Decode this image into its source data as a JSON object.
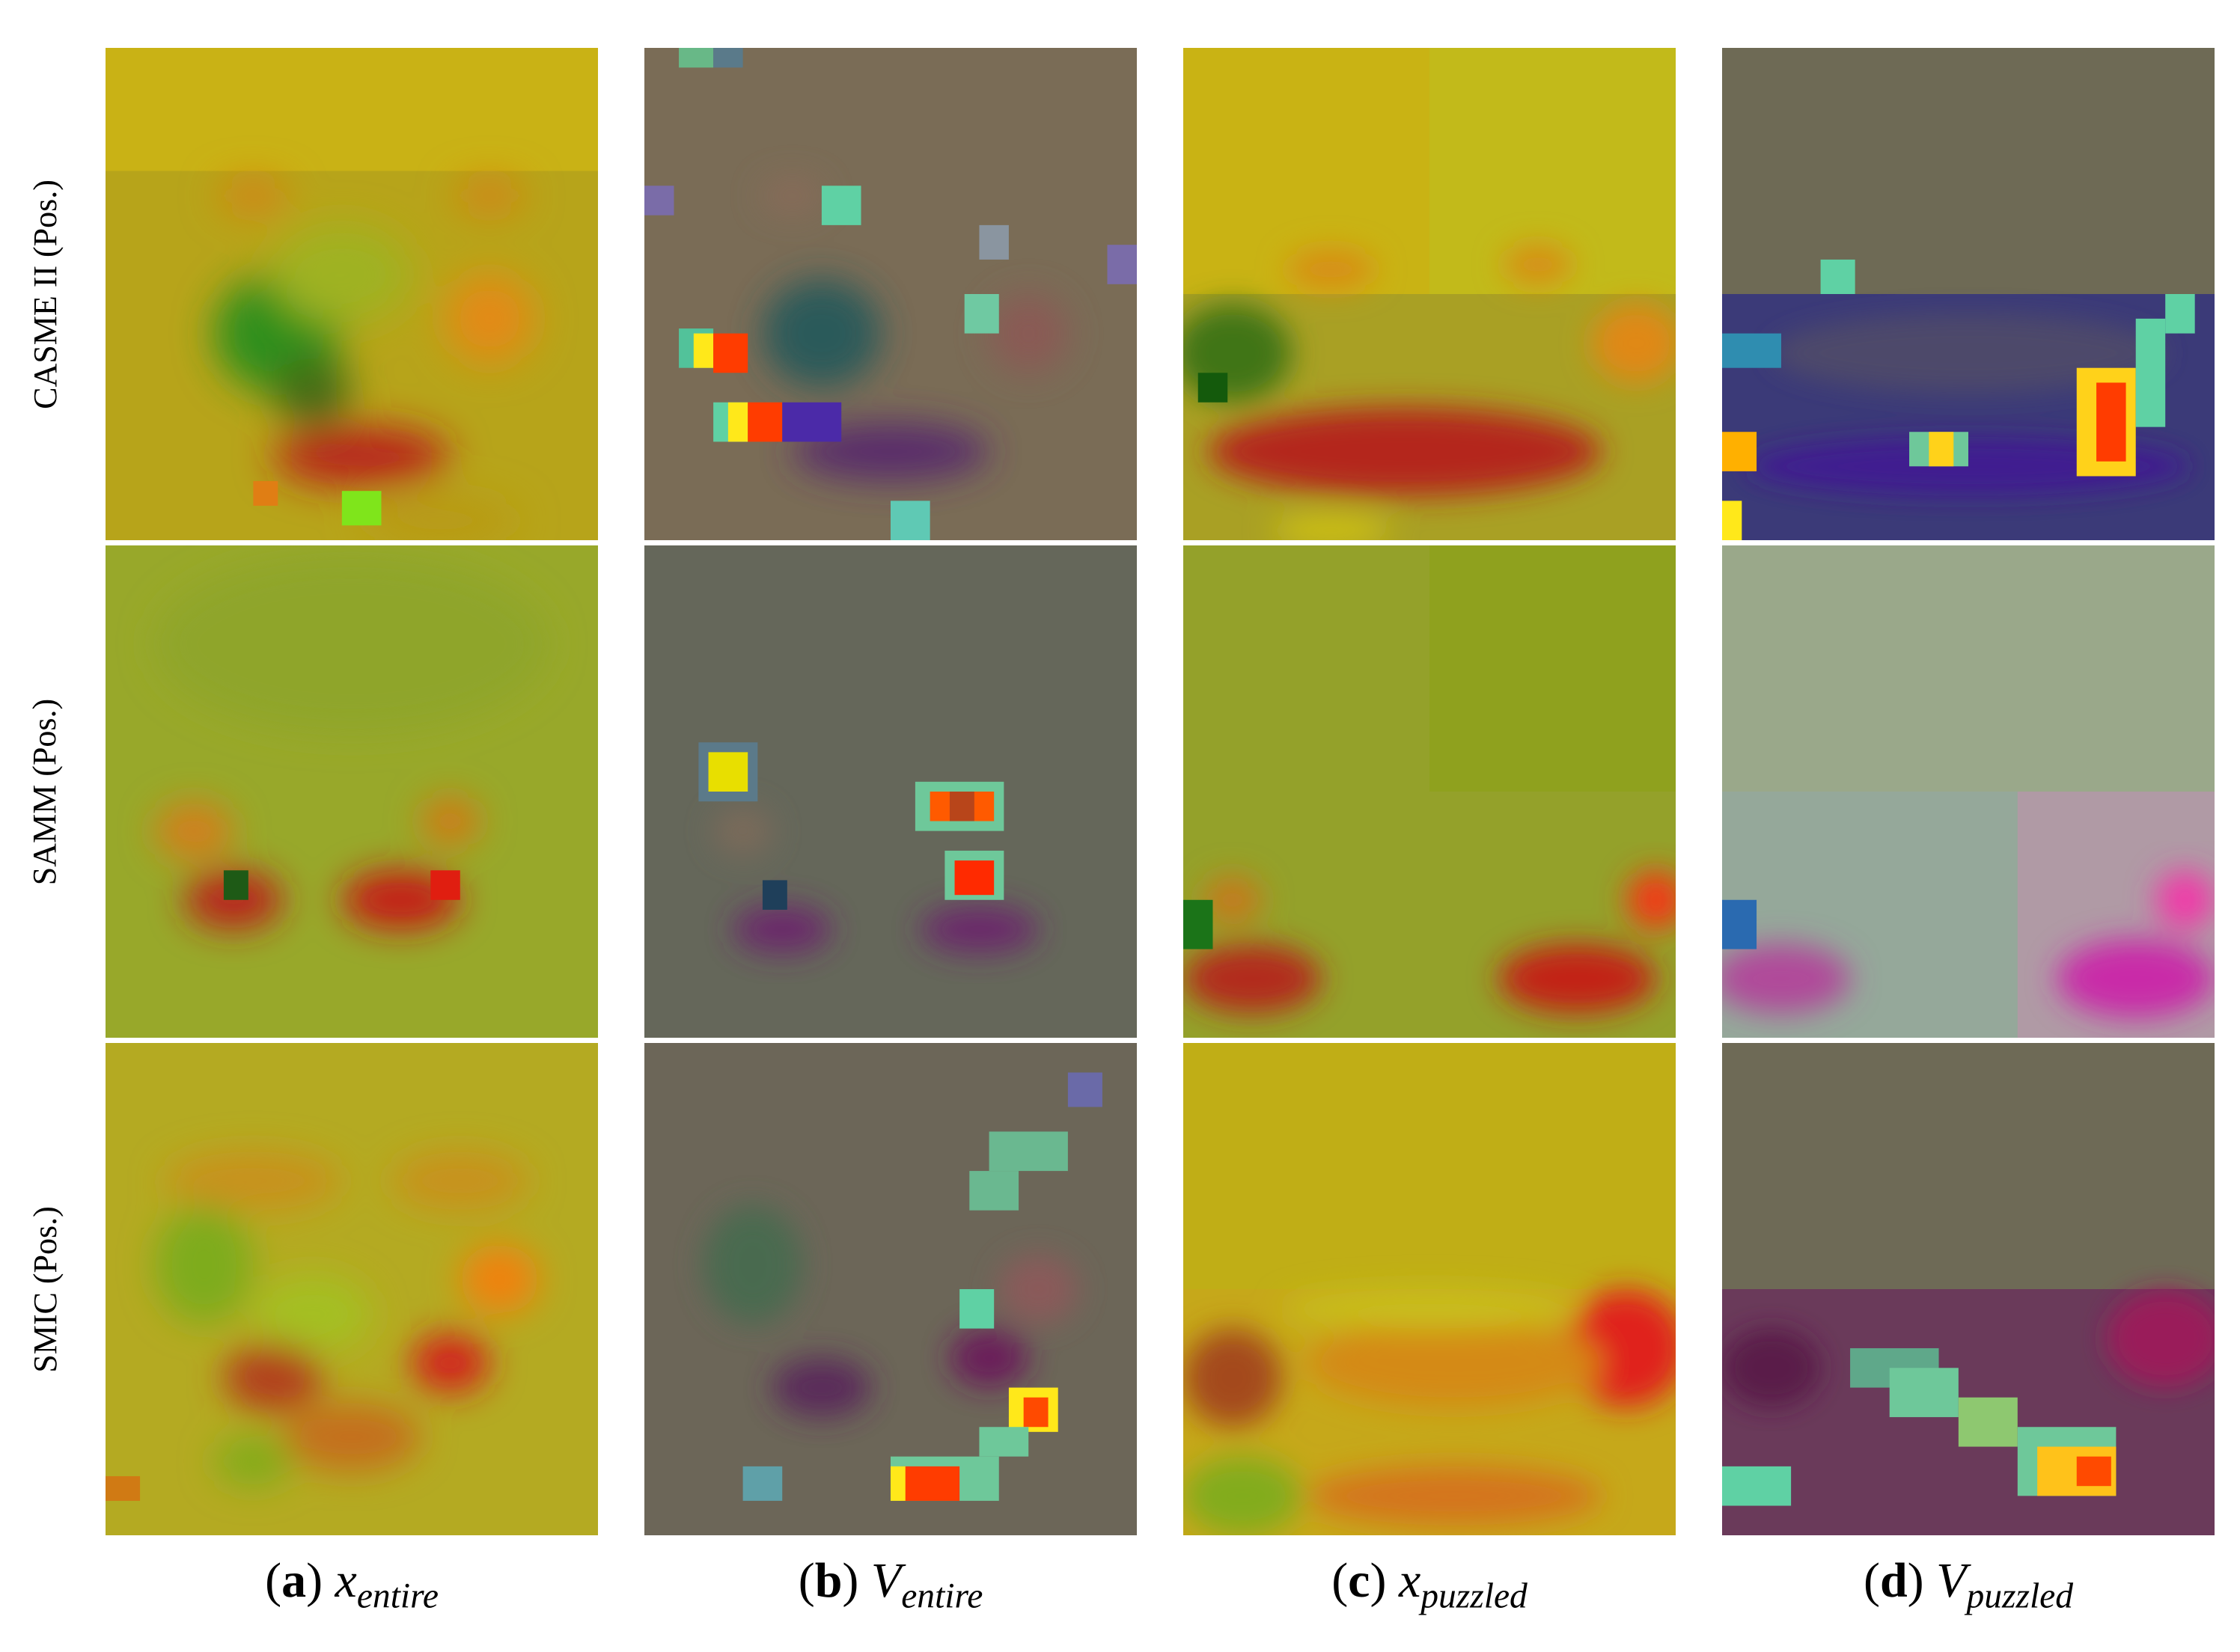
{
  "figure": {
    "rows": [
      {
        "label": "CASME II (Pos.)"
      },
      {
        "label": "SAMM (Pos.)"
      },
      {
        "label": "SMIC (Pos.)"
      }
    ],
    "columns": [
      {
        "letter": "a",
        "symbol": "x",
        "subscript": "entire"
      },
      {
        "letter": "b",
        "symbol": "V",
        "subscript": "entire"
      },
      {
        "letter": "c",
        "symbol": "x",
        "subscript": "puzzled"
      },
      {
        "letter": "d",
        "symbol": "V",
        "subscript": "puzzled"
      }
    ]
  },
  "colors": {
    "optical_flow_base": "#b9a317",
    "heatmap_base": "#6e6a55",
    "heatmap_hot": "#ff3c00",
    "heatmap_warm": "#ffe81a",
    "heatmap_cool": "#5fd1a4",
    "heatmap_low": "#4b2aa8"
  }
}
